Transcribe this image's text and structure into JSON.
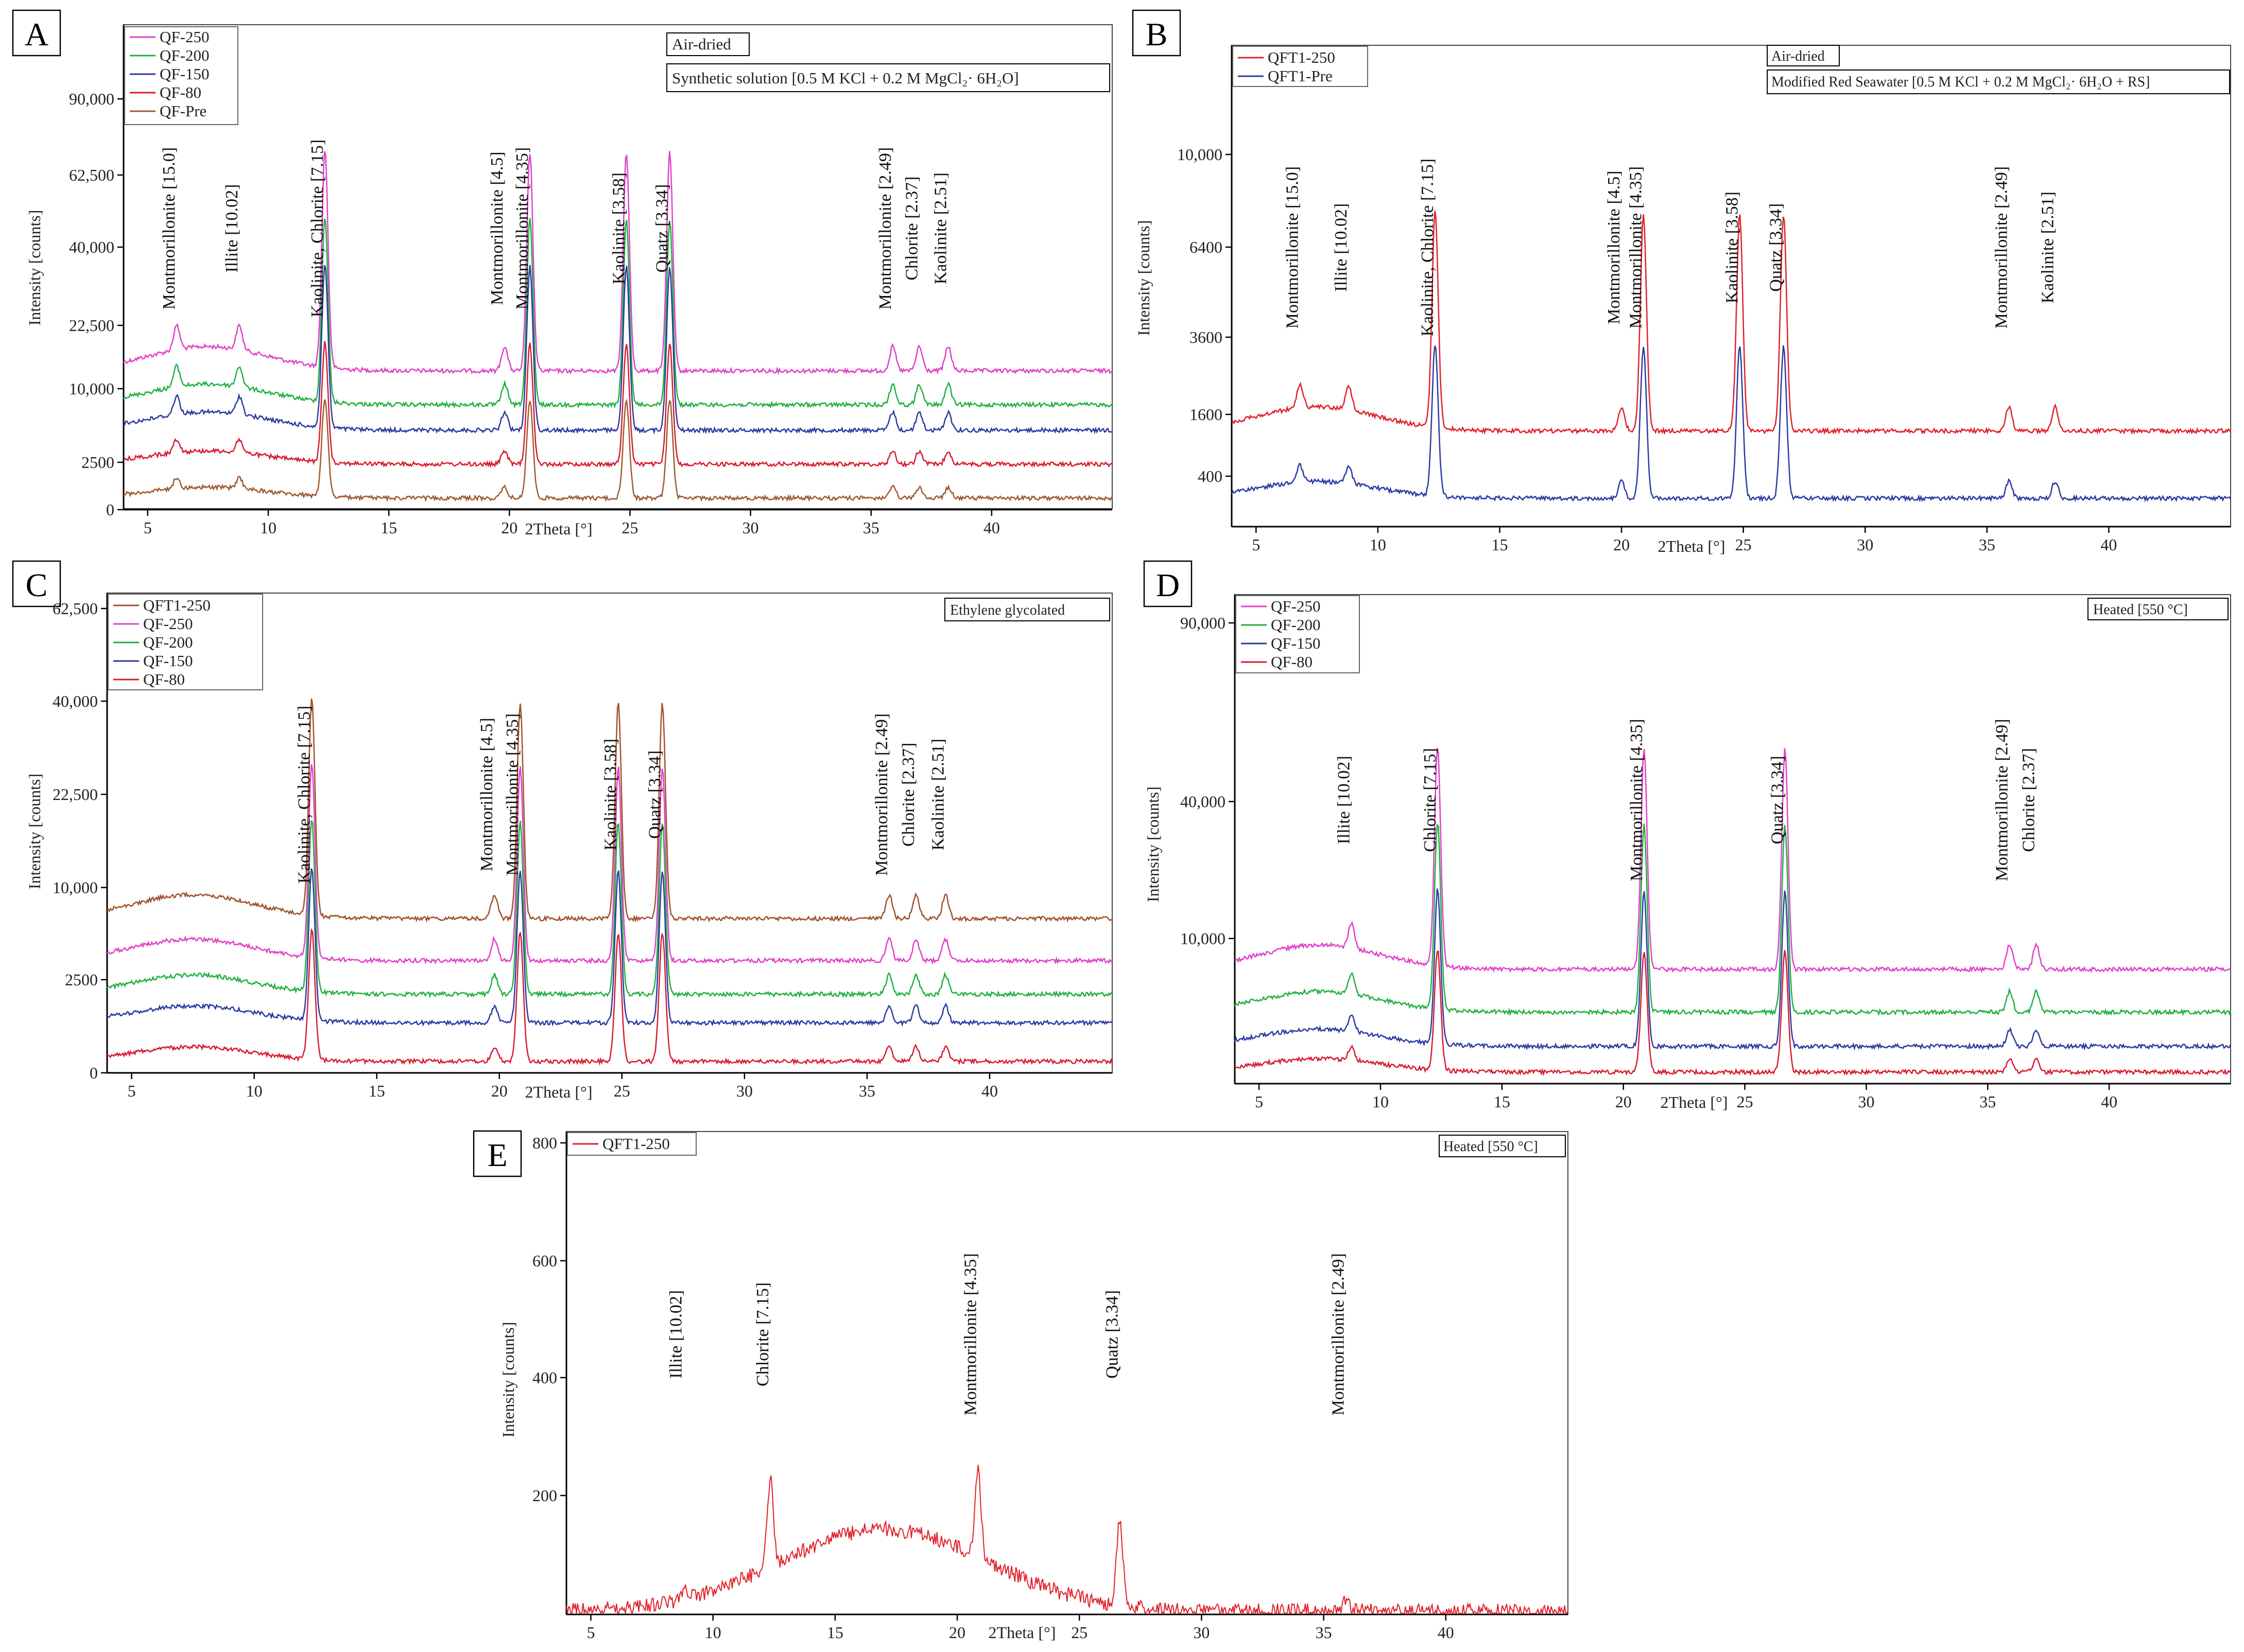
{
  "chart_data": [
    {
      "id": "A",
      "type": "line",
      "panel_label": "A",
      "xlabel": "2Theta [°]",
      "ylabel": "Intensity [counts]",
      "xlim": [
        4,
        45
      ],
      "x_ticks": [
        5,
        10,
        15,
        20,
        25,
        30,
        35,
        40
      ],
      "y_ticks": [
        "0",
        "2500",
        "10,000",
        "22,500",
        "40,000",
        "62,500",
        "90,000"
      ],
      "y_tick_values": [
        0,
        2500,
        10000,
        22500,
        40000,
        62500,
        90000
      ],
      "annotations": [
        "Air-dried",
        "Synthetic solution [0.5 M KCl + 0.2 M MgCl₂· 6H₂O]"
      ],
      "series": [
        {
          "name": "QF-250",
          "color": "#e040c8",
          "baseline": 0.8,
          "scale": 1.0
        },
        {
          "name": "QF-200",
          "color": "#20b040",
          "baseline": 0.6,
          "scale": 0.85
        },
        {
          "name": "QF-150",
          "color": "#2a3aa0",
          "baseline": 0.45,
          "scale": 0.75
        },
        {
          "name": "QF-80",
          "color": "#d81b30",
          "baseline": 0.25,
          "scale": 0.55
        },
        {
          "name": "QF-Pre",
          "color": "#a05a30",
          "baseline": 0.05,
          "scale": 0.45
        }
      ],
      "peaks": [
        {
          "label": "Montmorillonite [15.0]",
          "x": 6.2
        },
        {
          "label": "Illite [10.02]",
          "x": 8.8
        },
        {
          "label": "Kaolinite, Chlorite [7.15]",
          "x": 12.35
        },
        {
          "label": "Montmorillonite [4.5]",
          "x": 19.8
        },
        {
          "label": "Montmorillonite [4.35]",
          "x": 20.85
        },
        {
          "label": "Kaolinite [3.58]",
          "x": 24.85
        },
        {
          "label": "Quatz [3.34]",
          "x": 26.65
        },
        {
          "label": "Montmorillonite [2.49]",
          "x": 35.9
        },
        {
          "label": "Chlorite [2.37]",
          "x": 37.0
        },
        {
          "label": "Kaolinite [2.51]",
          "x": 38.2
        }
      ]
    },
    {
      "id": "B",
      "type": "line",
      "panel_label": "B",
      "xlabel": "2Theta [°]",
      "ylabel": "Intensity [counts]",
      "xlim": [
        4,
        45
      ],
      "x_ticks": [
        5,
        10,
        15,
        20,
        25,
        30,
        35,
        40
      ],
      "y_ticks": [
        "400",
        "1600",
        "3600",
        "6400",
        "10,000"
      ],
      "y_tick_values": [
        400,
        1600,
        3600,
        6400,
        10000
      ],
      "annotations": [
        "Air-dried",
        "Modified Red Seawater [0.5 M KCl + 0.2 M MgCl₂· 6H₂O + RS]"
      ],
      "series": [
        {
          "name": "QFT1-250",
          "color": "#e0202a",
          "baseline": 0.55,
          "scale": 1.0
        },
        {
          "name": "QFT1-Pre",
          "color": "#2a3aa0",
          "baseline": 0.15,
          "scale": 0.7
        }
      ],
      "peaks": [
        {
          "label": "Montmorillonite [15.0]",
          "x": 6.8
        },
        {
          "label": "Illite [10.02]",
          "x": 8.8
        },
        {
          "label": "Kaolinite, Chlorite [7.15]",
          "x": 12.35
        },
        {
          "label": "Montmorillonite [4.5]",
          "x": 20.0
        },
        {
          "label": "Montmorillonite [4.35]",
          "x": 20.9
        },
        {
          "label": "Kaolinite [3.58]",
          "x": 24.85
        },
        {
          "label": "Quatz [3.34]",
          "x": 26.65
        },
        {
          "label": "Montmorillonite [2.49]",
          "x": 35.9
        },
        {
          "label": "Kaolinite [2.51]",
          "x": 37.8
        }
      ]
    },
    {
      "id": "C",
      "type": "line",
      "panel_label": "C",
      "xlabel": "2Theta [°]",
      "ylabel": "Intensity [counts]",
      "xlim": [
        4,
        45
      ],
      "x_ticks": [
        5,
        10,
        15,
        20,
        25,
        30,
        35,
        40
      ],
      "y_ticks": [
        "0",
        "2500",
        "10,000",
        "22,500",
        "40,000",
        "62,500"
      ],
      "y_tick_values": [
        0,
        2500,
        10000,
        22500,
        40000,
        62500
      ],
      "annotations": [
        "Ethylene glycolated"
      ],
      "series": [
        {
          "name": "QFT1-250",
          "color": "#a0522d",
          "baseline": 0.9,
          "scale": 1.0
        },
        {
          "name": "QF-250",
          "color": "#e040c8",
          "baseline": 0.65,
          "scale": 0.9
        },
        {
          "name": "QF-200",
          "color": "#20b040",
          "baseline": 0.45,
          "scale": 0.8
        },
        {
          "name": "QF-150",
          "color": "#2a3aa0",
          "baseline": 0.28,
          "scale": 0.7
        },
        {
          "name": "QF-80",
          "color": "#d81b30",
          "baseline": 0.05,
          "scale": 0.6
        }
      ],
      "peaks": [
        {
          "label": "Kaolinite, Chlorite [7.15]",
          "x": 12.35
        },
        {
          "label": "Montmorillonite [4.5]",
          "x": 19.8
        },
        {
          "label": "Montmorillonite [4.35]",
          "x": 20.85
        },
        {
          "label": "Kaolinite [3.58]",
          "x": 24.85
        },
        {
          "label": "Quatz [3.34]",
          "x": 26.65
        },
        {
          "label": "Montmorillonite [2.49]",
          "x": 35.9
        },
        {
          "label": "Chlorite [2.37]",
          "x": 37.0
        },
        {
          "label": "Kaolinite [2.51]",
          "x": 38.2
        }
      ]
    },
    {
      "id": "D",
      "type": "line",
      "panel_label": "D",
      "xlabel": "2Theta [°]",
      "ylabel": "Intensity [counts]",
      "xlim": [
        4,
        45
      ],
      "x_ticks": [
        5,
        10,
        15,
        20,
        25,
        30,
        35,
        40
      ],
      "y_ticks": [
        "10,000",
        "40,000",
        "90,000"
      ],
      "y_tick_values": [
        10000,
        40000,
        90000
      ],
      "annotations": [
        "Heated [550 °C]"
      ],
      "series": [
        {
          "name": "QF-250",
          "color": "#e040c8",
          "baseline": 0.65,
          "scale": 1.0
        },
        {
          "name": "QF-200",
          "color": "#20b040",
          "baseline": 0.4,
          "scale": 0.85
        },
        {
          "name": "QF-150",
          "color": "#2a3aa0",
          "baseline": 0.2,
          "scale": 0.7
        },
        {
          "name": "QF-80",
          "color": "#d81b30",
          "baseline": 0.05,
          "scale": 0.55
        }
      ],
      "peaks": [
        {
          "label": "Illite [10.02]",
          "x": 8.8
        },
        {
          "label": "Chlorite [7.15]",
          "x": 12.35
        },
        {
          "label": "Montmorillonite [4.35]",
          "x": 20.85
        },
        {
          "label": "Quatz [3.34]",
          "x": 26.65
        },
        {
          "label": "Montmorillonite [2.49]",
          "x": 35.9
        },
        {
          "label": "Chlorite [2.37]",
          "x": 37.0
        }
      ]
    },
    {
      "id": "E",
      "type": "line",
      "panel_label": "E",
      "xlabel": "2Theta [°]",
      "ylabel": "Intensity [counts]",
      "xlim": [
        4,
        45
      ],
      "x_ticks": [
        5,
        10,
        15,
        20,
        25,
        30,
        35,
        40
      ],
      "y_ticks": [
        "200",
        "400",
        "600",
        "800"
      ],
      "y_tick_values": [
        200,
        400,
        600,
        800
      ],
      "ylim": [
        0,
        850
      ],
      "annotations": [
        "Heated [550 °C]"
      ],
      "series": [
        {
          "name": "QFT1-250",
          "color": "#e0202a",
          "baseline": 0.0,
          "scale": 1.0
        }
      ],
      "peaks": [
        {
          "label": "Illite [10.02]",
          "x": 8.8
        },
        {
          "label": "Chlorite [7.15]",
          "x": 12.35
        },
        {
          "label": "Montmorillonite [4.35]",
          "x": 20.85
        },
        {
          "label": "Quatz [3.34]",
          "x": 26.65
        },
        {
          "label": "Montmorillonite [2.49]",
          "x": 35.9
        }
      ]
    }
  ]
}
